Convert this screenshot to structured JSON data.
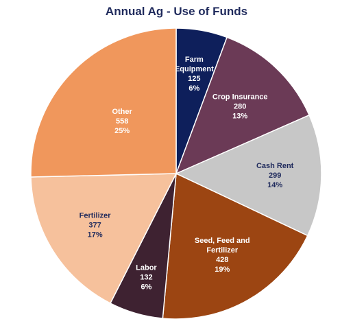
{
  "chart_data": {
    "type": "pie",
    "title": "Annual Ag - Use of Funds",
    "slices": [
      {
        "label_lines": [
          "Farm",
          "Equipment"
        ],
        "value": "125",
        "percent": "6%",
        "amount": 125,
        "color": "#0e1f5b",
        "text_color": "#ffffff"
      },
      {
        "label_lines": [
          "Crop Insurance"
        ],
        "value": "280",
        "percent": "13%",
        "amount": 280,
        "color": "#6b3a56",
        "text_color": "#ffffff"
      },
      {
        "label_lines": [
          "Cash Rent"
        ],
        "value": "299",
        "percent": "14%",
        "amount": 299,
        "color": "#c7c7c7",
        "text_color": "#1f2a5c"
      },
      {
        "label_lines": [
          "Seed, Feed and",
          "Fertilizer"
        ],
        "value": "428",
        "percent": "19%",
        "amount": 428,
        "color": "#9c4512",
        "text_color": "#ffffff"
      },
      {
        "label_lines": [
          "Labor"
        ],
        "value": "132",
        "percent": "6%",
        "amount": 132,
        "color": "#3e2231",
        "text_color": "#ffffff"
      },
      {
        "label_lines": [
          "Fertilizer"
        ],
        "value": "377",
        "percent": "17%",
        "amount": 377,
        "color": "#f6c19c",
        "text_color": "#1f2a5c"
      },
      {
        "label_lines": [
          "Other"
        ],
        "value": "558",
        "percent": "25%",
        "amount": 558,
        "color": "#f0975c",
        "text_color": "#ffffff"
      }
    ]
  }
}
